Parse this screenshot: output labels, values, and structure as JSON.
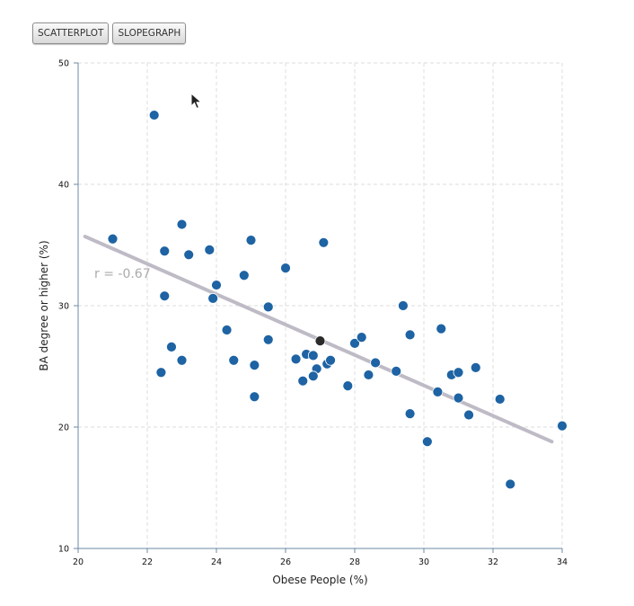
{
  "toolbar": {
    "scatterplot_label": "SCATTERPLOT",
    "slopegraph_label": "SLOPEGRAPH"
  },
  "colors": {
    "point": "#1e63a3",
    "highlight_point": "#2b2b2b",
    "trend_line": "#bebbc6",
    "grid": "#dcdcdc",
    "axis": "#6b8aa6"
  },
  "chart_data": {
    "type": "scatter",
    "xlabel": "Obese People (%)",
    "ylabel": "BA degree or higher (%)",
    "xlim": [
      20,
      34
    ],
    "ylim": [
      10,
      50
    ],
    "xticks": [
      20,
      22,
      24,
      26,
      28,
      30,
      32,
      34
    ],
    "yticks": [
      10,
      20,
      30,
      40,
      50
    ],
    "grid": true,
    "correlation_label": "r = -0.67",
    "trend_line": {
      "x": [
        20.2,
        33.7
      ],
      "y": [
        35.7,
        18.8
      ]
    },
    "highlight": {
      "x": 27.0,
      "y": 27.1
    },
    "points": [
      {
        "x": 21.0,
        "y": 35.5
      },
      {
        "x": 22.2,
        "y": 45.7
      },
      {
        "x": 22.5,
        "y": 34.5
      },
      {
        "x": 23.0,
        "y": 36.7
      },
      {
        "x": 23.2,
        "y": 34.2
      },
      {
        "x": 23.8,
        "y": 34.6
      },
      {
        "x": 25.0,
        "y": 35.4
      },
      {
        "x": 27.1,
        "y": 35.2
      },
      {
        "x": 26.0,
        "y": 33.1
      },
      {
        "x": 24.8,
        "y": 32.5
      },
      {
        "x": 24.0,
        "y": 31.7
      },
      {
        "x": 22.5,
        "y": 30.8
      },
      {
        "x": 23.9,
        "y": 30.6
      },
      {
        "x": 25.5,
        "y": 29.9
      },
      {
        "x": 24.3,
        "y": 28.0
      },
      {
        "x": 25.5,
        "y": 27.2
      },
      {
        "x": 22.7,
        "y": 26.6
      },
      {
        "x": 23.0,
        "y": 25.5
      },
      {
        "x": 22.4,
        "y": 24.5
      },
      {
        "x": 24.5,
        "y": 25.5
      },
      {
        "x": 25.1,
        "y": 25.1
      },
      {
        "x": 25.1,
        "y": 22.5
      },
      {
        "x": 26.3,
        "y": 25.6
      },
      {
        "x": 26.6,
        "y": 26.0
      },
      {
        "x": 26.8,
        "y": 25.9
      },
      {
        "x": 26.5,
        "y": 23.8
      },
      {
        "x": 26.9,
        "y": 24.8
      },
      {
        "x": 26.8,
        "y": 24.2
      },
      {
        "x": 27.2,
        "y": 25.2
      },
      {
        "x": 27.3,
        "y": 25.5
      },
      {
        "x": 28.0,
        "y": 26.9
      },
      {
        "x": 28.2,
        "y": 27.4
      },
      {
        "x": 27.8,
        "y": 23.4
      },
      {
        "x": 28.4,
        "y": 24.3
      },
      {
        "x": 28.6,
        "y": 25.3
      },
      {
        "x": 29.2,
        "y": 24.6
      },
      {
        "x": 29.4,
        "y": 30.0
      },
      {
        "x": 29.6,
        "y": 27.6
      },
      {
        "x": 29.6,
        "y": 21.1
      },
      {
        "x": 30.1,
        "y": 18.8
      },
      {
        "x": 30.4,
        "y": 22.9
      },
      {
        "x": 30.5,
        "y": 28.1
      },
      {
        "x": 30.8,
        "y": 24.3
      },
      {
        "x": 31.0,
        "y": 24.5
      },
      {
        "x": 31.0,
        "y": 22.4
      },
      {
        "x": 31.3,
        "y": 21.0
      },
      {
        "x": 31.5,
        "y": 24.9
      },
      {
        "x": 32.2,
        "y": 22.3
      },
      {
        "x": 32.5,
        "y": 15.3
      },
      {
        "x": 34.0,
        "y": 20.1
      }
    ]
  }
}
